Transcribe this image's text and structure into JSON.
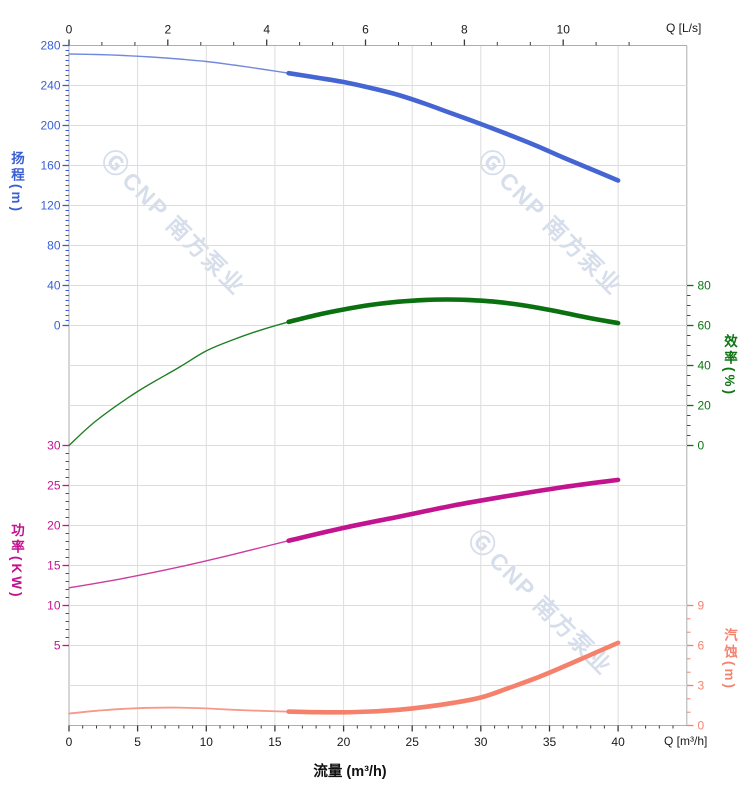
{
  "watermark": {
    "logo_glyph": "Ⓖ",
    "text": "CNP 南方泵业",
    "color": "#BCC9DF"
  },
  "chart_data": {
    "type": "line",
    "title": "",
    "x_axis_bottom": {
      "title": "Q [m³/h]",
      "axis_label": "流量 (m³/h)",
      "unit": "m³/h",
      "range": [
        0,
        45
      ],
      "major_ticks": [
        0,
        5,
        10,
        15,
        20,
        25,
        30,
        35,
        40
      ],
      "minor_tick_step": 1
    },
    "x_axis_top": {
      "title": "Q [L/s]",
      "unit": "L/s",
      "major_ticks": [
        0,
        2,
        4,
        6,
        8,
        10
      ],
      "minor_tick_step": 0.6667,
      "minor_tick_max": 11.34,
      "conversion": "1 L/s = 3.6 m³/h"
    },
    "y_axes": [
      {
        "id": "head",
        "side": "left",
        "title": "扬程(m)",
        "unit": "m",
        "color": "#3A5FD4",
        "range": [
          0,
          280
        ],
        "major_ticks": [
          280,
          240,
          200,
          160,
          120,
          80,
          40,
          0
        ],
        "minor_tick_step": 5
      },
      {
        "id": "efficiency",
        "side": "right",
        "title": "效率(%)",
        "unit": "%",
        "color": "#0E7414",
        "range": [
          0,
          80
        ],
        "major_ticks": [
          80,
          60,
          40,
          20,
          0
        ],
        "minor_tick_step": 5
      },
      {
        "id": "power",
        "side": "left",
        "title": "功率(KW)",
        "unit": "KW",
        "color": "#C2138E",
        "range": [
          0,
          30
        ],
        "major_ticks": [
          30,
          25,
          20,
          15,
          10,
          5
        ],
        "minor_tick_step": 1
      },
      {
        "id": "npsh",
        "side": "right",
        "title": "汽蚀(m)",
        "unit": "m",
        "color": "#F5836F",
        "range": [
          0,
          9
        ],
        "major_ticks": [
          9,
          6,
          3,
          0
        ],
        "minor_tick_step": 1
      }
    ],
    "series": [
      {
        "name": "head-curve",
        "axis": "head",
        "color": "#4565D2",
        "color_thin": "#7589DC",
        "duty_range": [
          16,
          40
        ],
        "points": [
          [
            0,
            271.5
          ],
          [
            2,
            271
          ],
          [
            4,
            270
          ],
          [
            6,
            268.5
          ],
          [
            8,
            266.5
          ],
          [
            10,
            264
          ],
          [
            12,
            260.5
          ],
          [
            14,
            256.5
          ],
          [
            16,
            252.3
          ],
          [
            18,
            248
          ],
          [
            20,
            243.5
          ],
          [
            22,
            237.5
          ],
          [
            24,
            230.5
          ],
          [
            26,
            221.5
          ],
          [
            28,
            211.5
          ],
          [
            30,
            201.5
          ],
          [
            32,
            191
          ],
          [
            34,
            180
          ],
          [
            36,
            168
          ],
          [
            38,
            156.5
          ],
          [
            40,
            145
          ]
        ]
      },
      {
        "name": "efficiency-curve",
        "axis": "efficiency",
        "color": "#0A7010",
        "color_thin": "#1F7F24",
        "duty_range": [
          16,
          40
        ],
        "points": [
          [
            0,
            0
          ],
          [
            2,
            12.5
          ],
          [
            5,
            27
          ],
          [
            8,
            39
          ],
          [
            10,
            47.3
          ],
          [
            12,
            53
          ],
          [
            14,
            57.8
          ],
          [
            16,
            61.8
          ],
          [
            18,
            65.2
          ],
          [
            20,
            68
          ],
          [
            22,
            70.3
          ],
          [
            24,
            71.9
          ],
          [
            26,
            72.8
          ],
          [
            27.5,
            73
          ],
          [
            29,
            72.8
          ],
          [
            31,
            71.9
          ],
          [
            33,
            70.2
          ],
          [
            35,
            67.8
          ],
          [
            37,
            65
          ],
          [
            38.5,
            63
          ],
          [
            40,
            61.2
          ]
        ]
      },
      {
        "name": "power-curve",
        "axis": "power",
        "color": "#C1148E",
        "color_thin": "#CD3DA0",
        "duty_range": [
          16,
          40
        ],
        "points": [
          [
            0,
            12.2
          ],
          [
            4,
            13.4
          ],
          [
            8,
            14.8
          ],
          [
            12,
            16.4
          ],
          [
            16,
            18.1
          ],
          [
            20,
            19.7
          ],
          [
            24,
            21.1
          ],
          [
            28,
            22.5
          ],
          [
            32,
            23.7
          ],
          [
            36,
            24.8
          ],
          [
            40,
            25.7
          ]
        ]
      },
      {
        "name": "npsh-curve",
        "axis": "npsh",
        "color": "#F5806C",
        "color_thin": "#F7998A",
        "duty_range": [
          16,
          40
        ],
        "points": [
          [
            0,
            0.9
          ],
          [
            2,
            1.1
          ],
          [
            4,
            1.25
          ],
          [
            6,
            1.33
          ],
          [
            8,
            1.34
          ],
          [
            10,
            1.28
          ],
          [
            12,
            1.18
          ],
          [
            14,
            1.1
          ],
          [
            16,
            1.04
          ],
          [
            18,
            1.0
          ],
          [
            20,
            0.99
          ],
          [
            22,
            1.05
          ],
          [
            24,
            1.18
          ],
          [
            26,
            1.4
          ],
          [
            28,
            1.7
          ],
          [
            30,
            2.1
          ],
          [
            32,
            2.8
          ],
          [
            34,
            3.55
          ],
          [
            36,
            4.4
          ],
          [
            38,
            5.3
          ],
          [
            40,
            6.2
          ]
        ]
      }
    ],
    "grid": "on",
    "legend": "none"
  }
}
